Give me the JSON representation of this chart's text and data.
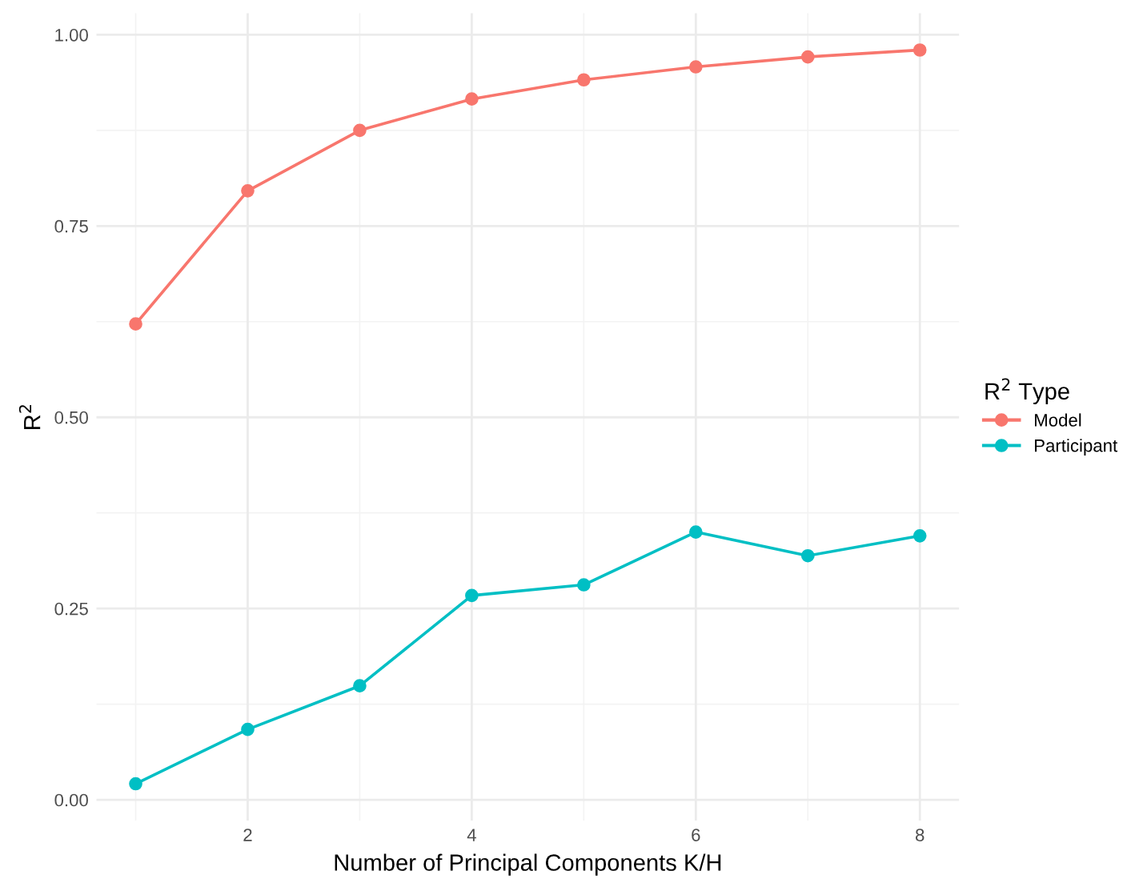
{
  "chart_data": {
    "type": "line",
    "xlabel": "Number of Principal Components K/H",
    "ylabel": "R$^{2}$",
    "legend_title": "R$^{2}$ Type",
    "x": [
      1,
      2,
      3,
      4,
      5,
      6,
      7,
      8
    ],
    "series": [
      {
        "name": "Model",
        "color": "#f8766d",
        "values": [
          0.622,
          0.796,
          0.875,
          0.916,
          0.941,
          0.958,
          0.971,
          0.98
        ]
      },
      {
        "name": "Participant",
        "color": "#00bfc4",
        "values": [
          0.021,
          0.092,
          0.149,
          0.267,
          0.281,
          0.35,
          0.319,
          0.345
        ]
      }
    ],
    "xlim": [
      0.65,
      8.35
    ],
    "ylim": [
      -0.027,
      1.028
    ],
    "xticks": [
      2,
      4,
      6,
      8
    ],
    "yticks": [
      {
        "value": 0,
        "label": "0.00"
      },
      {
        "value": 0.25,
        "label": "0.25"
      },
      {
        "value": 0.5,
        "label": "0.50"
      },
      {
        "value": 0.75,
        "label": "0.75"
      },
      {
        "value": 1,
        "label": "1.00"
      }
    ],
    "grid": true,
    "legend": "right",
    "marker": "circle",
    "line_style": "solid"
  }
}
